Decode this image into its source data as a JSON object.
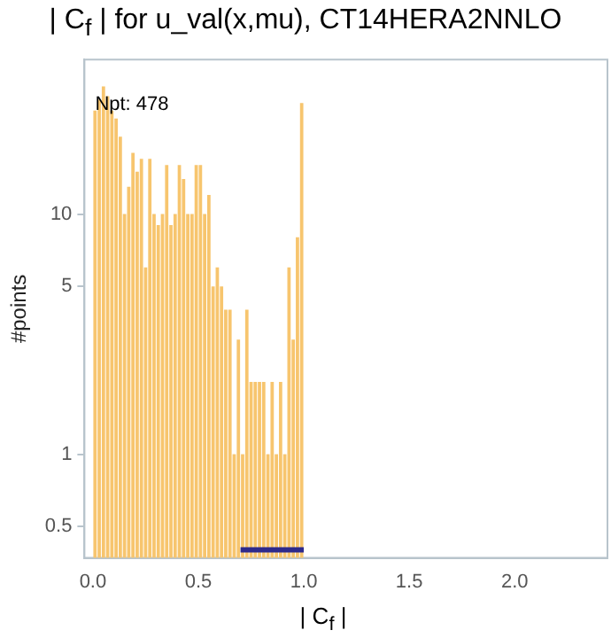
{
  "chart_data": {
    "type": "histogram",
    "title": "| C$_{f}$ | for  u_val(x,mu), CT14HERA2NNLO",
    "xlabel": "| C$_{f}$ |",
    "ylabel": "#points",
    "bins": [
      0,
      0.02,
      0.04,
      0.06,
      0.08,
      0.1,
      0.12,
      0.14,
      0.16,
      0.18,
      0.2,
      0.22,
      0.24,
      0.26,
      0.28,
      0.3,
      0.32,
      0.34,
      0.36,
      0.38,
      0.4,
      0.42,
      0.44,
      0.46,
      0.48,
      0.5,
      0.52,
      0.54,
      0.56,
      0.58,
      0.6,
      0.62,
      0.64,
      0.66,
      0.68,
      0.7,
      0.72,
      0.74,
      0.76,
      0.78,
      0.8,
      0.82,
      0.84,
      0.86,
      0.88,
      0.9,
      0.92,
      0.94,
      0.96,
      0.98,
      1.0
    ],
    "values": [
      27,
      30,
      34,
      31,
      27,
      25,
      21,
      10,
      13,
      18,
      15,
      17,
      6,
      17,
      10,
      9,
      10,
      16,
      9,
      10,
      16,
      14,
      10,
      10,
      16,
      16,
      10,
      12,
      5,
      6,
      5,
      4,
      4,
      1,
      3,
      1,
      4,
      2,
      2,
      2,
      2,
      1,
      2,
      1,
      2,
      1,
      6,
      3,
      8,
      29
    ],
    "color": "#f7c56e",
    "series": [
      {
        "type": "line",
        "x": [
          0.7,
          1.0
        ],
        "values": [
          0.4,
          0.4
        ],
        "color": "#2e2a8c"
      }
    ],
    "annotations": [
      "Npt: 478"
    ],
    "log": "y",
    "xlim": [
      -0.04,
      2.44
    ],
    "ylim": [
      0.37,
      44
    ],
    "xticks": [
      {
        "value": 0,
        "label": "0.0"
      },
      {
        "value": 0.5,
        "label": "0.5"
      },
      {
        "value": 1,
        "label": "1.0"
      },
      {
        "value": 1.5,
        "label": "1.5"
      },
      {
        "value": 2,
        "label": "2.0"
      }
    ],
    "yticks": [
      0.5,
      1,
      5,
      10
    ],
    "grid": false,
    "legend": false
  }
}
